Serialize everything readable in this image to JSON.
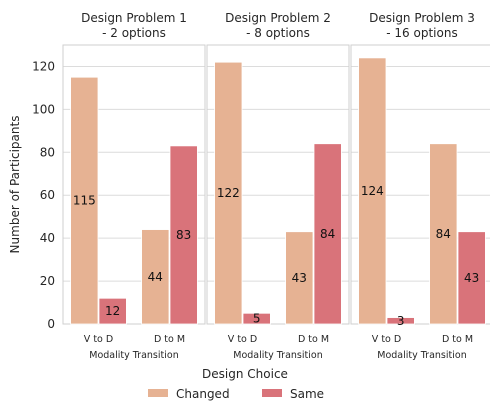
{
  "chart_data": {
    "type": "bar",
    "ylabel": "Number of Participants",
    "ylim": [
      0,
      130
    ],
    "yticks": [
      0,
      20,
      40,
      60,
      80,
      100,
      120
    ],
    "grid": true,
    "legend": {
      "title": "Design Choice",
      "placement": "bottom-center",
      "entries": [
        {
          "name": "Changed",
          "color": "#e6b293"
        },
        {
          "name": "Same",
          "color": "#d9737a"
        }
      ]
    },
    "panels": [
      {
        "title_line1": "Design Problem 1",
        "title_line2": "- 2 options",
        "xlabel": "Modality Transition",
        "categories": [
          "V to D",
          "D to M"
        ],
        "series": [
          {
            "name": "Changed",
            "values": [
              115,
              44
            ]
          },
          {
            "name": "Same",
            "values": [
              12,
              83
            ]
          }
        ]
      },
      {
        "title_line1": "Design Problem 2",
        "title_line2": "- 8 options",
        "xlabel": "Modality Transition",
        "categories": [
          "V to D",
          "D to M"
        ],
        "series": [
          {
            "name": "Changed",
            "values": [
              122,
              43
            ]
          },
          {
            "name": "Same",
            "values": [
              5,
              84
            ]
          }
        ]
      },
      {
        "title_line1": "Design Problem 3",
        "title_line2": "- 16 options",
        "xlabel": "Modality Transition",
        "categories": [
          "V to D",
          "D to M"
        ],
        "series": [
          {
            "name": "Changed",
            "values": [
              124,
              84
            ]
          },
          {
            "name": "Same",
            "values": [
              3,
              43
            ]
          }
        ]
      }
    ]
  }
}
